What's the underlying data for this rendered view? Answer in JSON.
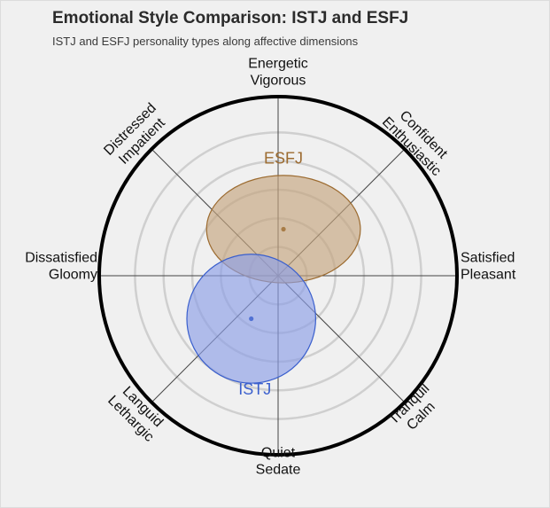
{
  "title": "Emotional Style Comparison: ISTJ and ESFJ",
  "subtitle": "ISTJ and ESFJ personality types along affective dimensions",
  "chart_data": {
    "type": "radial-ellipse",
    "grid": "concentric circles",
    "axes": {
      "top": [
        "Energetic",
        "Vigorous"
      ],
      "top_right": [
        "Confident",
        "Enthusiastic"
      ],
      "right": [
        "Satisfied",
        "Pleasant"
      ],
      "bottom_right": [
        "Tranquil",
        "Calm"
      ],
      "bottom": [
        "Quiet",
        "Sedate"
      ],
      "bottom_left": [
        "Languid",
        "Lethargic"
      ],
      "left": [
        "Dissatisfied",
        "Gloomy"
      ],
      "top_left": [
        "Distressed",
        "Impatient"
      ]
    },
    "x_axis": {
      "negative": "Dissatisfied",
      "positive": "Satisfied",
      "range": [
        -1,
        1
      ]
    },
    "y_axis": {
      "negative": "Sedate",
      "positive": "Energetic",
      "range": [
        -1,
        1
      ]
    },
    "series": [
      {
        "name": "ESFJ",
        "color": "#9c6b30",
        "fill": "#c4a47e",
        "center": [
          0.03,
          0.26
        ],
        "spread": [
          0.43,
          0.3
        ]
      },
      {
        "name": "ISTJ",
        "color": "#3a5fcd",
        "fill": "#8c9ee6",
        "center": [
          -0.15,
          -0.24
        ],
        "spread": [
          0.36,
          0.36
        ]
      }
    ]
  }
}
